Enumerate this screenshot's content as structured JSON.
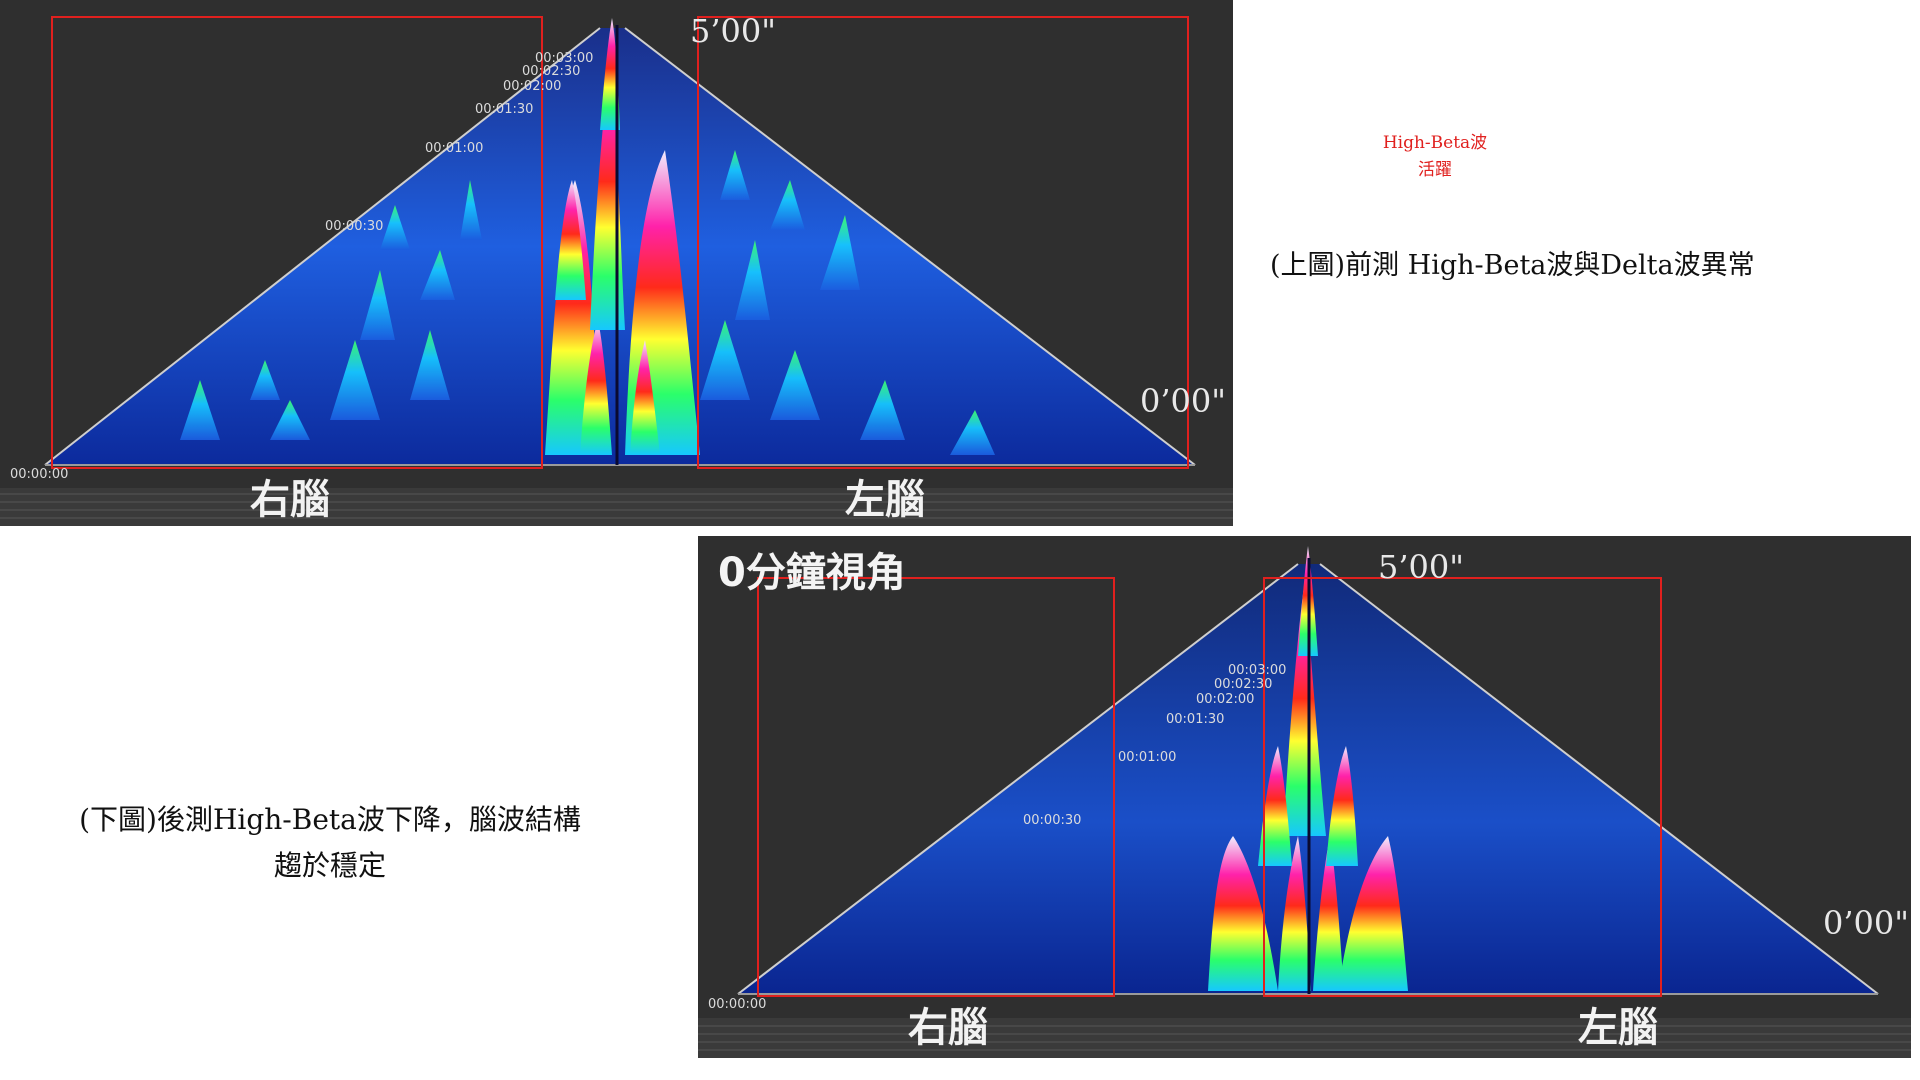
{
  "top_panel": {
    "label_right_brain": "右腦",
    "label_left_brain": "左腦",
    "time_end": "5’00\"",
    "time_start": "0’00\"",
    "tick_labels": [
      "00:00:00",
      "00:00:30",
      "00:01:00",
      "00:01:30",
      "00:02:00",
      "00:02:30",
      "00:03:00"
    ]
  },
  "bottom_panel": {
    "view_angle_label": "0分鐘視角",
    "label_right_brain": "右腦",
    "label_left_brain": "左腦",
    "time_end": "5’00\"",
    "time_start": "0’00\"",
    "tick_labels": [
      "00:00:00",
      "00:00:30",
      "00:01:00",
      "00:01:30",
      "00:02:00",
      "00:02:30",
      "00:03:00"
    ]
  },
  "annotations": {
    "high_beta_line1": "High-Beta波",
    "high_beta_line2": "活躍",
    "caption_top": "(上圖)前測  High-Beta波與Delta波異常",
    "caption_bottom_line1": "(下圖)後測High-Beta波下降，腦波結構",
    "caption_bottom_line2": "趨於穩定"
  },
  "colors": {
    "panel_background": "#2f2f2f",
    "highlight_box": "#e0201e",
    "annotation_red": "#e0201e"
  }
}
